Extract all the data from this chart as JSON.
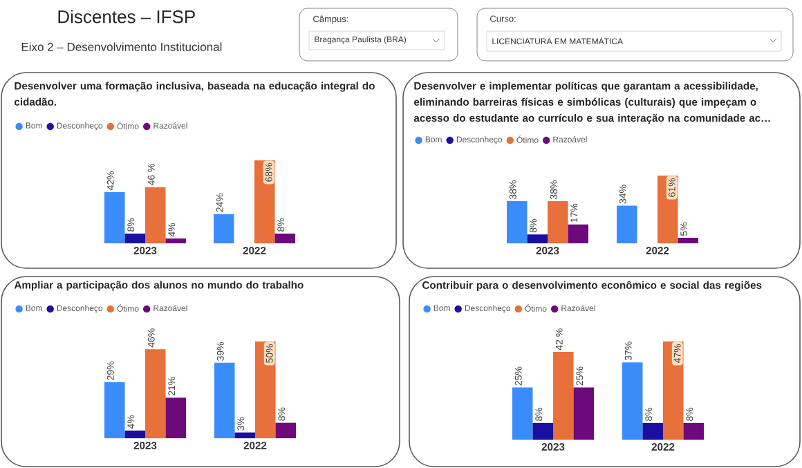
{
  "chart_data": [
    {
      "type": "other",
      "title": "Discentes – IFSP",
      "subtitle": "Eixo 2 – Desenvolvimento Institucional",
      "annotations": [
        "Câmpus:",
        "Bragança Paulista (BRA)",
        "Curso:",
        "LICENCIATURA EM MATEMÁTICA"
      ]
    },
    {
      "type": "bar",
      "title": "Desenvolver uma formação inclusiva, baseada na educação integral do cidadão.",
      "categories": [
        "2023",
        "2022"
      ],
      "legend": "top left",
      "tick_labels": "x",
      "series": [
        {
          "name": "Bom",
          "color": "#3b8cfb",
          "values": [
            42,
            24
          ],
          "value_labels": [
            "42%",
            "24%"
          ]
        },
        {
          "name": "Desconheço",
          "color": "#1a0fa0",
          "values": [
            8,
            null
          ],
          "value_labels": [
            "8%",
            null
          ]
        },
        {
          "name": "Ótimo",
          "color": "#e8703a",
          "values": [
            46,
            68
          ],
          "value_labels": [
            "46 %",
            "68%"
          ]
        },
        {
          "name": "Razoável",
          "color": "#6c0a7c",
          "values": [
            4,
            8
          ],
          "value_labels": [
            "4%",
            "8%"
          ]
        }
      ]
    },
    {
      "type": "bar",
      "title": "Desenvolver e implementar políticas que garantam a acessibilidade, eliminando barreiras físicas e simbólicas (culturais) que impeçam o acesso do estudante ao currículo e sua interação na comunidade ac…",
      "categories": [
        "2023",
        "2022"
      ],
      "legend": "top left",
      "tick_labels": "x",
      "series": [
        {
          "name": "Bom",
          "color": "#3b8cfb",
          "values": [
            38,
            34
          ],
          "value_labels": [
            "38%",
            "34%"
          ]
        },
        {
          "name": "Desconheço",
          "color": "#1a0fa0",
          "values": [
            8,
            null
          ],
          "value_labels": [
            "8%",
            null
          ]
        },
        {
          "name": "Ótimo",
          "color": "#e8703a",
          "values": [
            38,
            61
          ],
          "value_labels": [
            "38%",
            "61%"
          ]
        },
        {
          "name": "Razoável",
          "color": "#6c0a7c",
          "values": [
            17,
            5
          ],
          "value_labels": [
            "17%",
            "5%"
          ]
        }
      ]
    },
    {
      "type": "bar",
      "title": "Ampliar a participação dos alunos no mundo do trabalho",
      "categories": [
        "2023",
        "2022"
      ],
      "legend": "top left",
      "tick_labels": "x",
      "series": [
        {
          "name": "Bom",
          "color": "#3b8cfb",
          "values": [
            29,
            39
          ],
          "value_labels": [
            "29%",
            "39%"
          ]
        },
        {
          "name": "Desconheço",
          "color": "#1a0fa0",
          "values": [
            4,
            3
          ],
          "value_labels": [
            "4%",
            "3%"
          ]
        },
        {
          "name": "Ótimo",
          "color": "#e8703a",
          "values": [
            46,
            50
          ],
          "value_labels": [
            "46%",
            "50%"
          ]
        },
        {
          "name": "Razoável",
          "color": "#6c0a7c",
          "values": [
            21,
            8
          ],
          "value_labels": [
            "21%",
            "8%"
          ]
        }
      ]
    },
    {
      "type": "bar",
      "title": "Contribuir para o desenvolvimento econômico e social das regiões",
      "categories": [
        "2023",
        "2022"
      ],
      "legend": "top left",
      "tick_labels": "x",
      "series": [
        {
          "name": "Bom",
          "color": "#3b8cfb",
          "values": [
            25,
            37
          ],
          "value_labels": [
            "25%",
            "37%"
          ]
        },
        {
          "name": "Desconheço",
          "color": "#1a0fa0",
          "values": [
            8,
            8
          ],
          "value_labels": [
            "8%",
            "8%"
          ]
        },
        {
          "name": "Ótimo",
          "color": "#e8703a",
          "values": [
            42,
            47
          ],
          "value_labels": [
            "42 %",
            "47%"
          ]
        },
        {
          "name": "Razoável",
          "color": "#6c0a7c",
          "values": [
            25,
            8
          ],
          "value_labels": [
            "25%",
            "8%"
          ]
        }
      ]
    }
  ]
}
